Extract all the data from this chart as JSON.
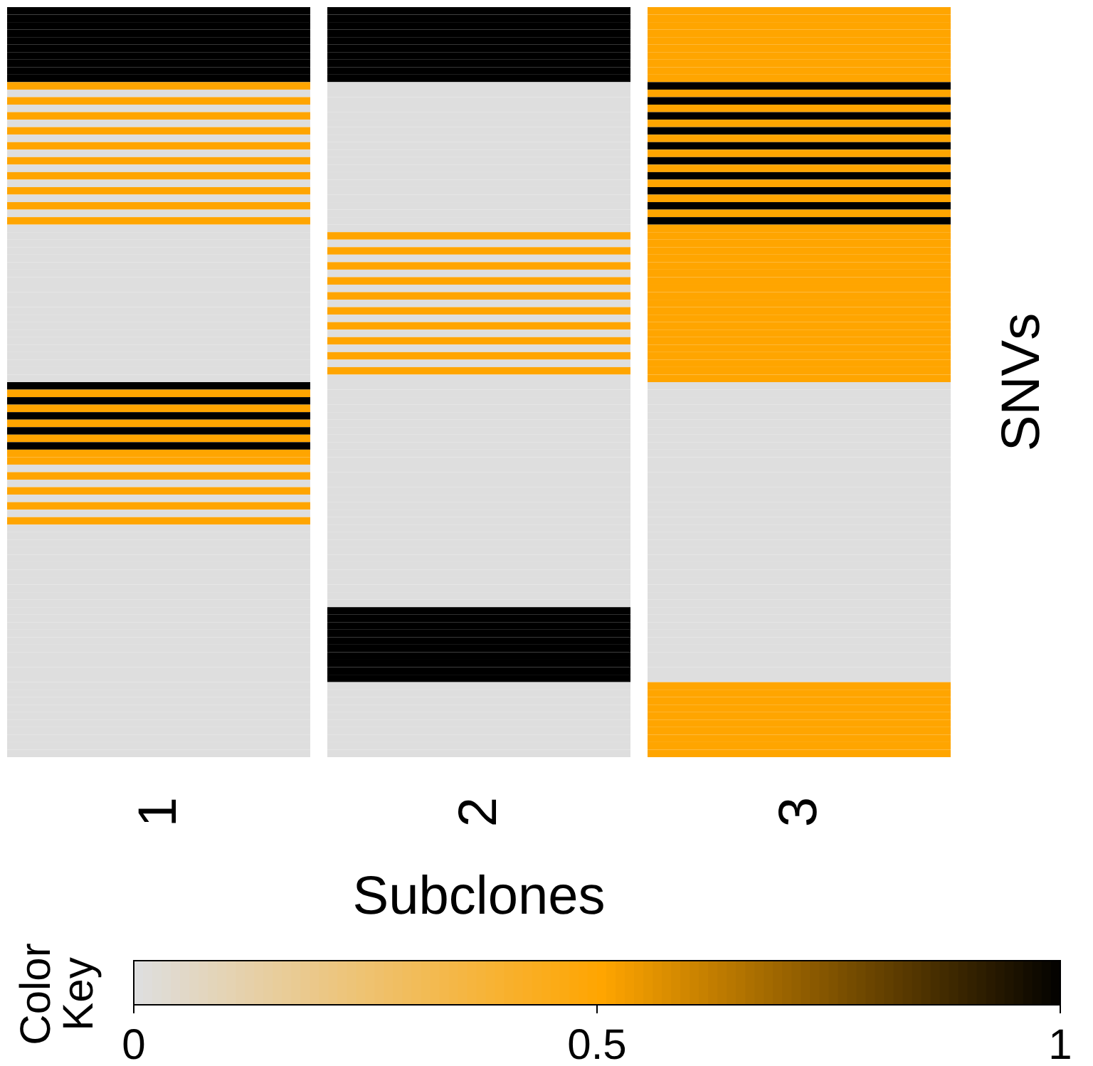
{
  "chart_data": {
    "type": "heatmap",
    "xlabel": "Subclones",
    "ylabel": "SNVs",
    "clabel": "Color Key",
    "categories": [
      "1",
      "2",
      "3"
    ],
    "y_categories": [
      null,
      null,
      null,
      null,
      null,
      null,
      null,
      null,
      null,
      null,
      null,
      null,
      null,
      null,
      null,
      null,
      null,
      null,
      null,
      null,
      null,
      null,
      null,
      null,
      null,
      null,
      null,
      null,
      null,
      null,
      null,
      null,
      null,
      null,
      null,
      null,
      null,
      null,
      null,
      null,
      null,
      null,
      null,
      null,
      null,
      null,
      null,
      null,
      null,
      null,
      null,
      null,
      null,
      null,
      null,
      null,
      null,
      null,
      null,
      null,
      null,
      null,
      null,
      null,
      null,
      null,
      null,
      null,
      null,
      null,
      null,
      null,
      null,
      null,
      null,
      null,
      null,
      null,
      null,
      null,
      null,
      null,
      null,
      null,
      null,
      null,
      null,
      null,
      null,
      null,
      null,
      null,
      null,
      null,
      null,
      null,
      null,
      null,
      null,
      null
    ],
    "colors": [
      "#dedede",
      "#ffa500",
      "#000000"
    ],
    "clim": [
      0,
      1
    ],
    "cticks": [
      0,
      0.5,
      1
    ],
    "cells": [
      [
        1,
        1,
        0.5
      ],
      [
        1,
        1,
        0.5
      ],
      [
        1,
        1,
        0.5
      ],
      [
        1,
        1,
        0.5
      ],
      [
        1,
        1,
        0.5
      ],
      [
        1,
        1,
        0.5
      ],
      [
        1,
        1,
        0.5
      ],
      [
        1,
        1,
        0.5
      ],
      [
        1,
        1,
        0.5
      ],
      [
        1,
        1,
        0.5
      ],
      [
        0.5,
        0,
        1
      ],
      [
        0,
        0,
        0.5
      ],
      [
        0.5,
        0,
        1
      ],
      [
        0,
        0,
        0.5
      ],
      [
        0.5,
        0,
        1
      ],
      [
        0,
        0,
        0.5
      ],
      [
        0.5,
        0,
        1
      ],
      [
        0,
        0,
        0.5
      ],
      [
        0.5,
        0,
        1
      ],
      [
        0,
        0,
        0.5
      ],
      [
        0.5,
        0,
        1
      ],
      [
        0,
        0,
        0.5
      ],
      [
        0.5,
        0,
        1
      ],
      [
        0,
        0,
        0.5
      ],
      [
        0.5,
        0,
        1
      ],
      [
        0,
        0,
        0.5
      ],
      [
        0.5,
        0,
        1
      ],
      [
        0,
        0,
        0.5
      ],
      [
        0.5,
        0,
        1
      ],
      [
        0,
        0,
        0.5
      ],
      [
        0,
        0.5,
        0.5
      ],
      [
        0,
        0,
        0.5
      ],
      [
        0,
        0.5,
        0.5
      ],
      [
        0,
        0,
        0.5
      ],
      [
        0,
        0.5,
        0.5
      ],
      [
        0,
        0,
        0.5
      ],
      [
        0,
        0.5,
        0.5
      ],
      [
        0,
        0,
        0.5
      ],
      [
        0,
        0.5,
        0.5
      ],
      [
        0,
        0,
        0.5
      ],
      [
        0,
        0.5,
        0.5
      ],
      [
        0,
        0,
        0.5
      ],
      [
        0,
        0.5,
        0.5
      ],
      [
        0,
        0,
        0.5
      ],
      [
        0,
        0.5,
        0.5
      ],
      [
        0,
        0,
        0.5
      ],
      [
        0,
        0.5,
        0.5
      ],
      [
        0,
        0,
        0.5
      ],
      [
        0,
        0.5,
        0.5
      ],
      [
        0,
        0,
        0.5
      ],
      [
        1,
        0,
        0
      ],
      [
        0.5,
        0,
        0
      ],
      [
        1,
        0,
        0
      ],
      [
        0.5,
        0,
        0
      ],
      [
        1,
        0,
        0
      ],
      [
        0.5,
        0,
        0
      ],
      [
        1,
        0,
        0
      ],
      [
        0.5,
        0,
        0
      ],
      [
        1,
        0,
        0
      ],
      [
        0.5,
        0,
        0
      ],
      [
        0.5,
        0,
        0
      ],
      [
        0,
        0,
        0
      ],
      [
        0.5,
        0,
        0
      ],
      [
        0,
        0,
        0
      ],
      [
        0.5,
        0,
        0
      ],
      [
        0,
        0,
        0
      ],
      [
        0.5,
        0,
        0
      ],
      [
        0,
        0,
        0
      ],
      [
        0.5,
        0,
        0
      ],
      [
        0,
        0,
        0
      ],
      [
        0,
        0,
        0
      ],
      [
        0,
        0,
        0
      ],
      [
        0,
        0,
        0
      ],
      [
        0,
        0,
        0
      ],
      [
        0,
        0,
        0
      ],
      [
        0,
        0,
        0
      ],
      [
        0,
        0,
        0
      ],
      [
        0,
        0,
        0
      ],
      [
        0,
        0,
        0
      ],
      [
        0,
        0,
        0
      ],
      [
        0,
        1,
        0
      ],
      [
        0,
        1,
        0
      ],
      [
        0,
        1,
        0
      ],
      [
        0,
        1,
        0
      ],
      [
        0,
        1,
        0
      ],
      [
        0,
        1,
        0
      ],
      [
        0,
        1,
        0
      ],
      [
        0,
        1,
        0
      ],
      [
        0,
        1,
        0
      ],
      [
        0,
        1,
        0
      ],
      [
        0,
        0,
        0.5
      ],
      [
        0,
        0,
        0.5
      ],
      [
        0,
        0,
        0.5
      ],
      [
        0,
        0,
        0.5
      ],
      [
        0,
        0,
        0.5
      ],
      [
        0,
        0,
        0.5
      ],
      [
        0,
        0,
        0.5
      ],
      [
        0,
        0,
        0.5
      ],
      [
        0,
        0,
        0.5
      ],
      [
        0,
        0,
        0.5
      ]
    ]
  }
}
